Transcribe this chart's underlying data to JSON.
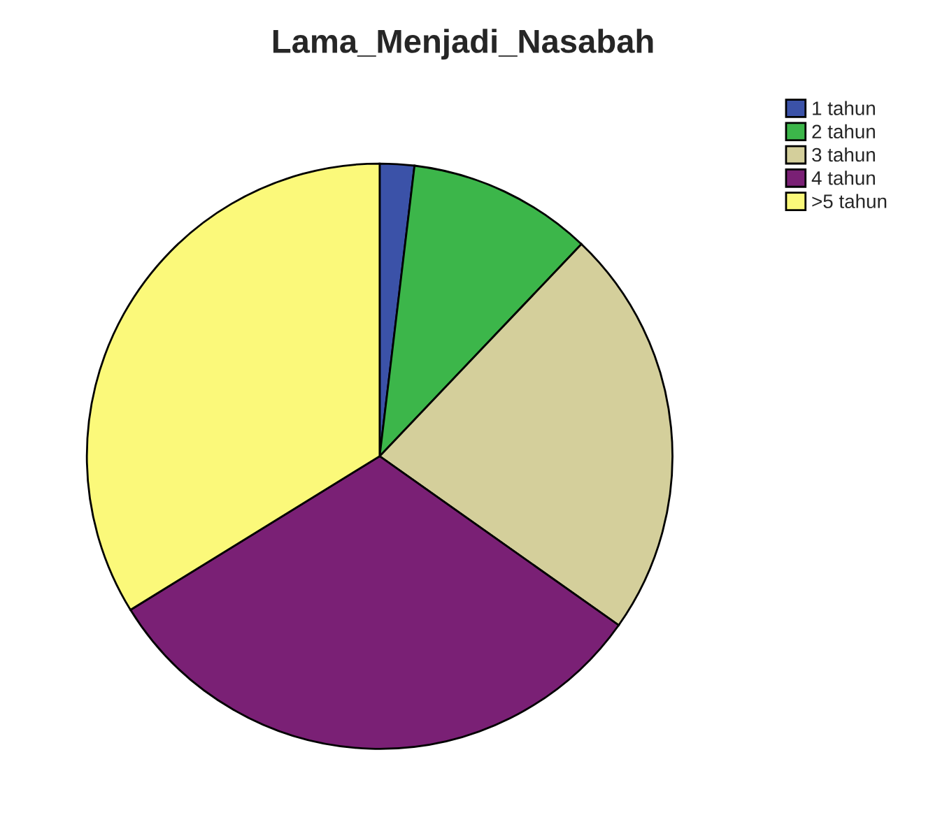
{
  "chart_data": {
    "type": "pie",
    "title": "Lama_Menjadi_Nasabah",
    "categories": [
      "1 tahun",
      "2 tahun",
      "3 tahun",
      "4 tahun",
      ">5 tahun"
    ],
    "values": [
      1.9,
      10.2,
      22.7,
      31.4,
      33.8
    ],
    "colors": [
      "#3b52a8",
      "#3cb64a",
      "#d4cf9b",
      "#7a2075",
      "#fbf97a"
    ],
    "legend": "top right"
  }
}
